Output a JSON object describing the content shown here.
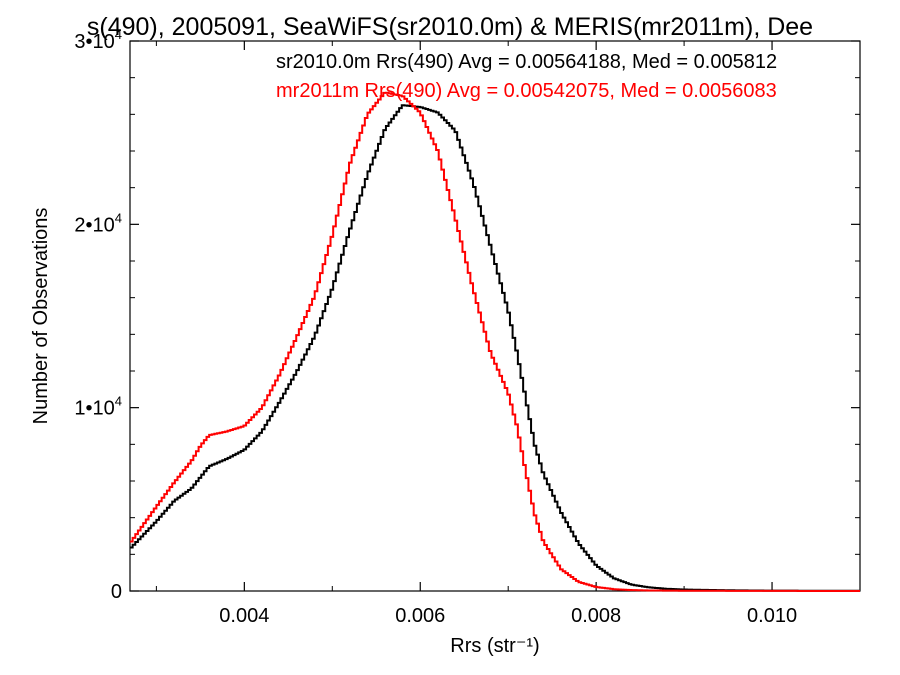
{
  "chart_data": {
    "type": "line",
    "title": "s(490), 2005091, SeaWiFS(sr2010.0m) & MERIS(mr2011m), Dee",
    "xlabel": "Rrs (str⁻¹)",
    "ylabel": "Number of Observations",
    "xlim": [
      0.0027,
      0.011
    ],
    "ylim": [
      0,
      30000
    ],
    "grid": false,
    "x_ticks": [
      {
        "value": 0.004,
        "label": "0.004"
      },
      {
        "value": 0.006,
        "label": "0.006"
      },
      {
        "value": 0.008,
        "label": "0.008"
      },
      {
        "value": 0.01,
        "label": "0.010"
      }
    ],
    "y_ticks": [
      {
        "value": 0,
        "label": "0",
        "exp": ""
      },
      {
        "value": 10000,
        "label": "1•10",
        "exp": "4"
      },
      {
        "value": 20000,
        "label": "2•10",
        "exp": "4"
      },
      {
        "value": 30000,
        "label": "3•10",
        "exp": "4"
      }
    ],
    "legend_placement": "top-right",
    "series": [
      {
        "name": "sr2010.0m Rrs(490) Avg = 0.00564188, Med = 0.005812",
        "color": "#000000",
        "x": [
          0.0027,
          0.003,
          0.0032,
          0.0034,
          0.0035,
          0.0036,
          0.0038,
          0.004,
          0.0042,
          0.0044,
          0.0046,
          0.0048,
          0.005,
          0.0052,
          0.0054,
          0.0056,
          0.0058,
          0.006,
          0.0062,
          0.0064,
          0.0066,
          0.0068,
          0.007,
          0.0071,
          0.0072,
          0.0073,
          0.0074,
          0.0076,
          0.0078,
          0.008,
          0.0082,
          0.0084,
          0.0086,
          0.0088,
          0.009,
          0.0095,
          0.01,
          0.011
        ],
        "y": [
          2300,
          3800,
          4900,
          5600,
          6200,
          6800,
          7200,
          7700,
          8700,
          10300,
          12000,
          13900,
          16500,
          19700,
          22700,
          25200,
          26500,
          26400,
          26100,
          25100,
          22300,
          18800,
          15300,
          13000,
          10500,
          8000,
          6400,
          4300,
          2600,
          1400,
          700,
          350,
          200,
          120,
          80,
          40,
          20,
          10
        ]
      },
      {
        "name": "mr2011m Rrs(490) Avg = 0.00542075, Med = 0.0056083",
        "color": "#ff0000",
        "x": [
          0.0027,
          0.003,
          0.0032,
          0.0034,
          0.0035,
          0.0036,
          0.0037,
          0.0038,
          0.004,
          0.0042,
          0.0044,
          0.0046,
          0.0048,
          0.005,
          0.0052,
          0.0054,
          0.0056,
          0.0058,
          0.006,
          0.0062,
          0.0064,
          0.0066,
          0.0068,
          0.007,
          0.0071,
          0.0072,
          0.0073,
          0.0074,
          0.0076,
          0.0078,
          0.008,
          0.0082,
          0.0084,
          0.0086,
          0.009,
          0.01,
          0.011
        ],
        "y": [
          2600,
          4600,
          5900,
          7100,
          7900,
          8500,
          8600,
          8700,
          9000,
          10000,
          11800,
          13900,
          16100,
          19400,
          23300,
          26000,
          27200,
          27000,
          26100,
          24000,
          20300,
          16500,
          13000,
          10800,
          9000,
          6500,
          4200,
          2700,
          1200,
          500,
          220,
          100,
          50,
          30,
          15,
          5,
          0
        ]
      }
    ]
  }
}
